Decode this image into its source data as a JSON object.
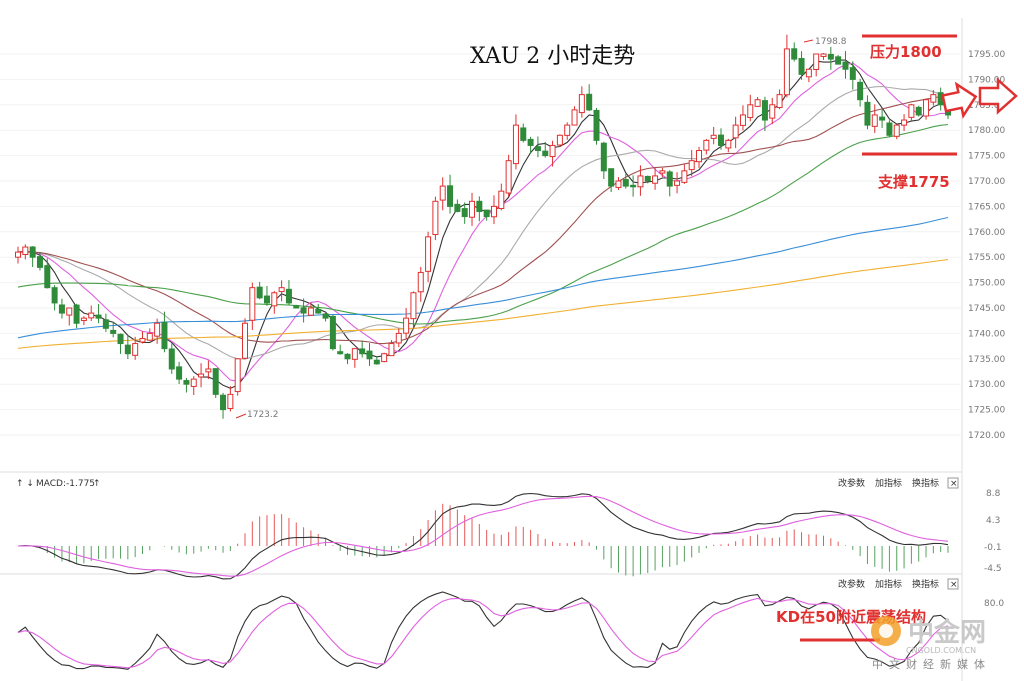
{
  "title": "XAU 2 小时走势",
  "annotations": {
    "resistance": "压力1800",
    "support": "支撑1775",
    "high_label": "1798.8",
    "low_label": "1723.2",
    "kd_note": "KD在50附近震荡结构"
  },
  "macd_panel": {
    "label": "MACD:-1.775",
    "arrows": "↑ ↓",
    "up_arrow": "↑",
    "buttons": [
      "改参数",
      "加指标",
      "换指标"
    ],
    "close": "×",
    "ticks": [
      "8.8",
      "4.3",
      "-0.1",
      "-4.5"
    ]
  },
  "kd_panel": {
    "buttons": [
      "改参数",
      "加指标",
      "换指标"
    ],
    "close": "×",
    "ticks": [
      "80.0"
    ]
  },
  "watermark": {
    "brand": "中金网",
    "site": "CNGOLD.COM.CN",
    "subtitle": "中文财经新媒体"
  },
  "colors": {
    "up": "#e03030",
    "down": "#2e8b3a",
    "ma5": "#333333",
    "ma10": "#e060e0",
    "ma20": "#aaaaaa",
    "ma30": "#a05050",
    "ma60": "#4aa04a",
    "ma120": "#3a8fd8",
    "ma250": "#f0b030"
  },
  "chart_data": {
    "type": "candlestick",
    "title": "XAU 2 小时走势",
    "ylim": [
      1718,
      1800
    ],
    "y_ticks": [
      1795,
      1790,
      1785,
      1780,
      1775,
      1770,
      1765,
      1760,
      1755,
      1750,
      1745,
      1740,
      1735,
      1730,
      1725,
      1720
    ],
    "y_tick_labels": [
      "1795.00",
      "1790.00",
      "1785.00",
      "1780.00",
      "1775.00",
      "1770.00",
      "1765.00",
      "1760.00",
      "1755.00",
      "1750.00",
      "1745.00",
      "1740.00",
      "1735.00",
      "1730.00",
      "1725.00",
      "1720.00"
    ],
    "resistance": 1798.5,
    "support": 1775,
    "high": 1798.8,
    "low": 1723.2,
    "closes": [
      1756,
      1757,
      1755,
      1753,
      1749,
      1746,
      1744,
      1745,
      1742,
      1743,
      1744,
      1743,
      1741,
      1740,
      1738,
      1736,
      1738,
      1739,
      1740,
      1742,
      1737,
      1733,
      1731,
      1730,
      1731,
      1732,
      1733,
      1728,
      1725,
      1728,
      1735,
      1742,
      1749,
      1747,
      1746,
      1748,
      1749,
      1746,
      1745,
      1744,
      1745,
      1744,
      1743,
      1737,
      1736,
      1735,
      1737,
      1736,
      1735,
      1734,
      1736,
      1738,
      1740,
      1743,
      1748,
      1752,
      1759,
      1766,
      1769,
      1765,
      1764,
      1763,
      1766,
      1764,
      1763,
      1765,
      1768,
      1774,
      1781,
      1778,
      1777,
      1776,
      1775,
      1777,
      1779,
      1781,
      1784,
      1787,
      1784,
      1778,
      1772,
      1769,
      1770,
      1769,
      1769,
      1771,
      1770,
      1771,
      1772,
      1769,
      1770,
      1772,
      1774,
      1776,
      1778,
      1779,
      1777,
      1778,
      1781,
      1783,
      1785,
      1786,
      1782,
      1785,
      1787,
      1796,
      1794,
      1791,
      1792,
      1795,
      1795,
      1794,
      1793,
      1792,
      1790,
      1786,
      1781,
      1783,
      1782,
      1779,
      1781,
      1782,
      1785,
      1783,
      1786,
      1787,
      1785,
      1783
    ],
    "ma_periods": [
      5,
      10,
      20,
      30,
      60,
      120,
      250
    ],
    "macd": {
      "label": "MACD:-1.775",
      "ticks": [
        8.8,
        4.3,
        -0.1,
        -4.5
      ],
      "ylim": [
        -6,
        10
      ]
    },
    "kd": {
      "ticks": [
        80.0
      ],
      "ylim": [
        0,
        100
      ],
      "note": "KD在50附近震荡结构"
    }
  }
}
